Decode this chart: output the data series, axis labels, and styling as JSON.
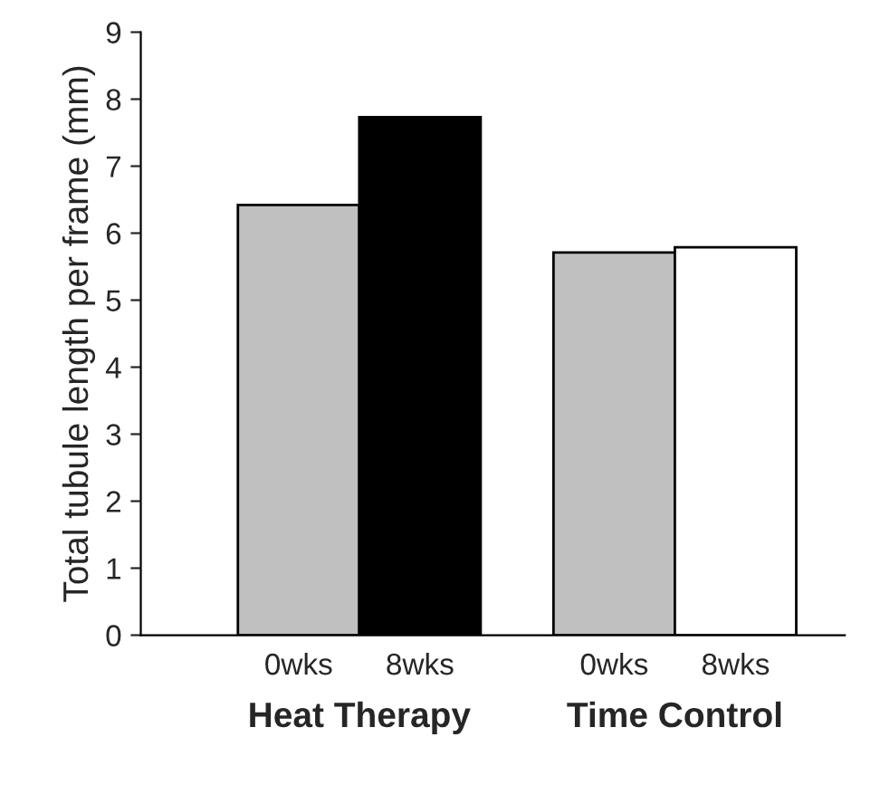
{
  "chart_data": {
    "type": "bar",
    "ylabel": "Total tubule length per frame (mm)",
    "categories": [
      "0wks",
      "8wks",
      "0wks",
      "8wks"
    ],
    "values": [
      6.42,
      7.73,
      5.71,
      5.79
    ],
    "colors": [
      "#c0c0c0",
      "#000000",
      "#c0c0c0",
      "#ffffff"
    ],
    "ylim": [
      0,
      9
    ],
    "yticks": [
      0,
      1,
      2,
      3,
      4,
      5,
      6,
      7,
      8,
      9
    ],
    "grid": false,
    "annotations": [
      "Heat Therapy",
      "Time Control"
    ]
  }
}
